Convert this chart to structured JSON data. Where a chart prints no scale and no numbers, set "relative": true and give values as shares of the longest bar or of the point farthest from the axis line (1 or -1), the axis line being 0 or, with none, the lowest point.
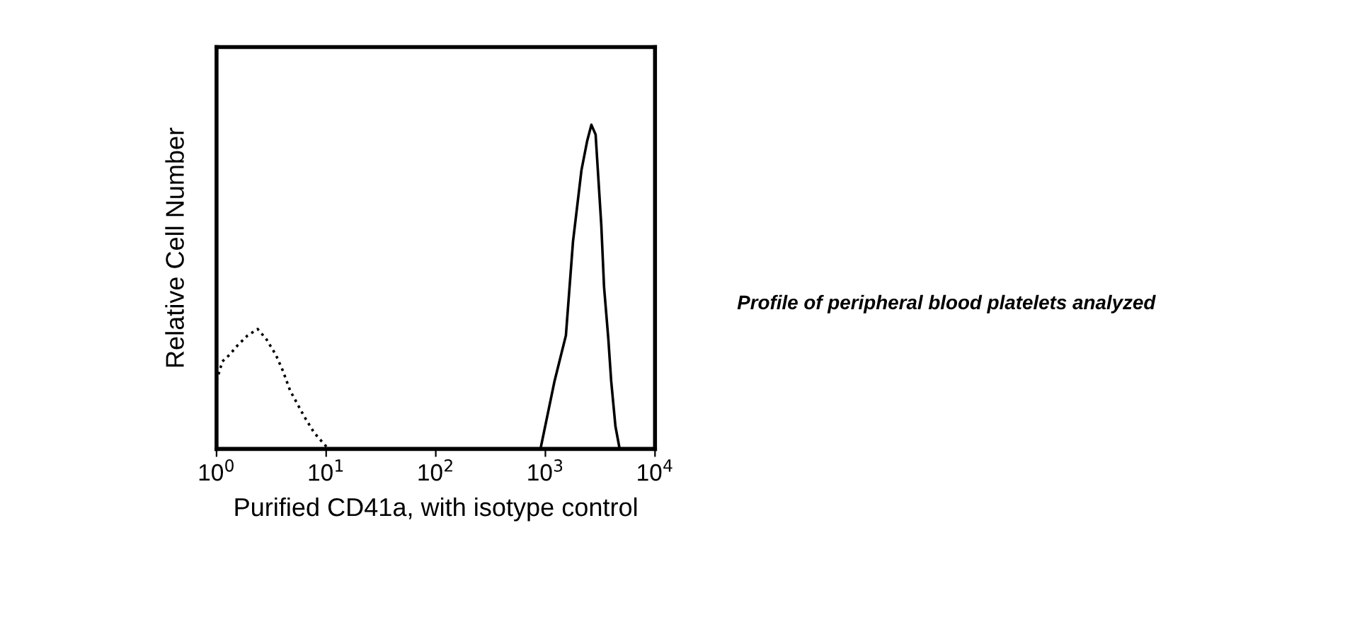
{
  "chart_data": {
    "type": "line",
    "relative": true,
    "log": "x",
    "tick_labels": "x",
    "xlabel": "Purified CD41a, with isotype control",
    "ylabel": "Relative Cell Number",
    "xlim": [
      1,
      10000
    ],
    "xticks": [
      {
        "value": 1,
        "label": "10$^{0}$"
      },
      {
        "value": 10,
        "label": "10$^{1}$"
      },
      {
        "value": 100,
        "label": "10$^{2}$"
      },
      {
        "value": 1000,
        "label": "10$^{3}$"
      },
      {
        "value": 10000,
        "label": "10$^{4}$"
      }
    ],
    "annotations": [
      "Profile of peripheral blood platelets analyzed"
    ],
    "series": [
      {
        "color": "#000000",
        "line_style": "dotted",
        "x": [
          1,
          1.13,
          1.31,
          1.56,
          1.92,
          2.37,
          2.83,
          3.48,
          4.04,
          4.69,
          5.44,
          6.31,
          7.77,
          9.29,
          10.5
        ],
        "values": [
          0.21,
          0.27,
          0.29,
          0.32,
          0.35,
          0.37,
          0.34,
          0.29,
          0.24,
          0.18,
          0.14,
          0.1,
          0.05,
          0.02,
          0
        ]
      },
      {
        "color": "#000000",
        "line_style": "solid",
        "x": [
          902,
          1213,
          1538,
          1786,
          2133,
          2404,
          2627,
          2871,
          3048,
          3236,
          3428,
          3750,
          3981,
          4355,
          4757
        ],
        "values": [
          0,
          0.21,
          0.35,
          0.64,
          0.86,
          0.95,
          1,
          0.97,
          0.83,
          0.69,
          0.5,
          0.34,
          0.21,
          0.07,
          0
        ]
      }
    ]
  }
}
